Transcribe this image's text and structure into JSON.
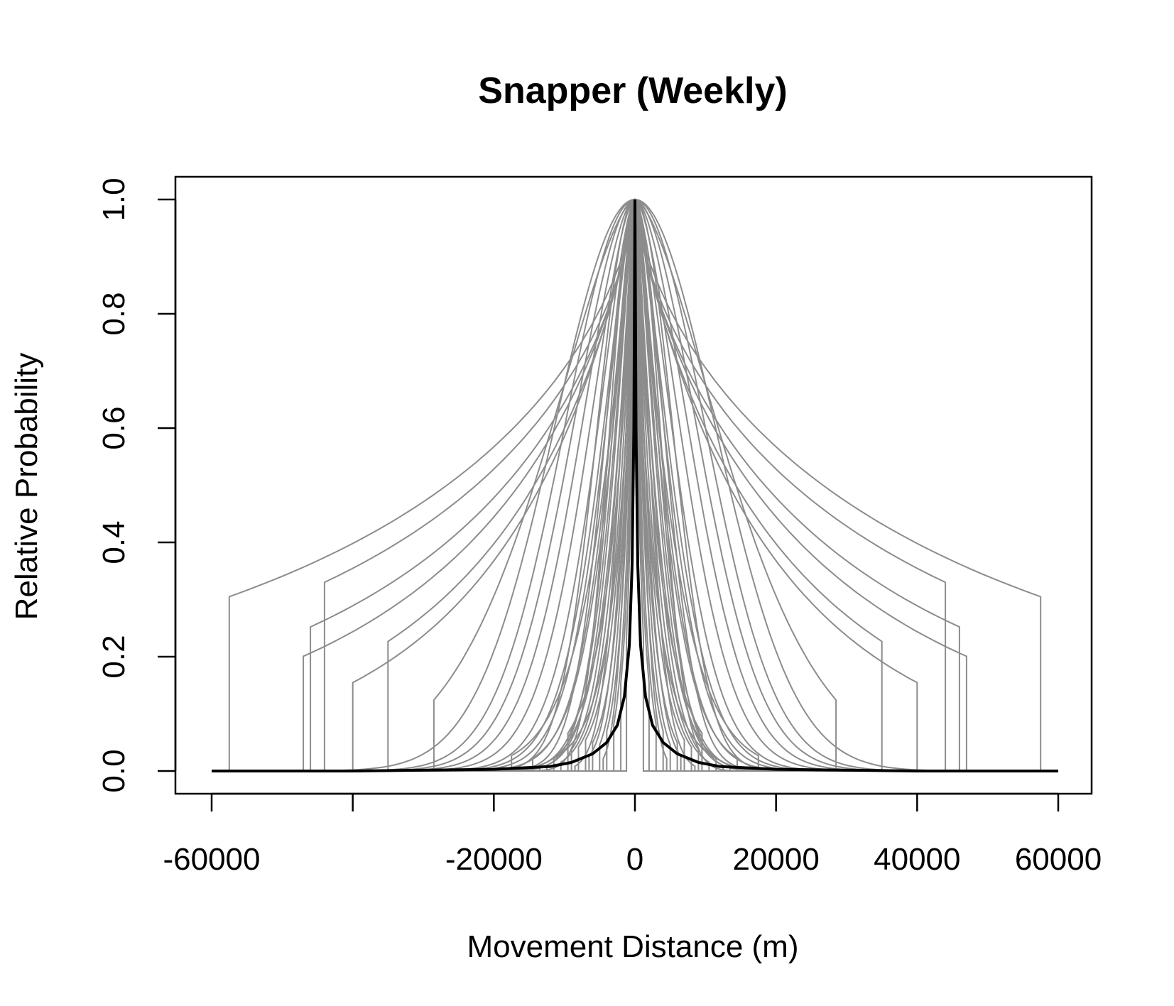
{
  "chart_data": {
    "type": "line",
    "title": "Snapper (Weekly)",
    "xlabel": "Movement Distance (m)",
    "ylabel": "Relative Probability",
    "xlim": [
      -60000,
      60000
    ],
    "ylim": [
      0,
      1
    ],
    "x_ticks": [
      -60000,
      -40000,
      -20000,
      0,
      20000,
      40000,
      60000
    ],
    "x_tick_labels": [
      "-60000",
      "",
      "-20000",
      "0",
      "20000",
      "40000",
      "60000"
    ],
    "y_ticks": [
      0,
      0.2,
      0.4,
      0.6,
      0.8,
      1.0
    ],
    "y_tick_labels": [
      "0.0",
      "0.2",
      "0.4",
      "0.6",
      "0.8",
      "1.0"
    ],
    "grid": false,
    "legend": "none",
    "colors": {
      "samples": "#8c8c8c",
      "mean": "#000000"
    },
    "mean_curve": {
      "x": [
        -60000,
        -40000,
        -20000,
        -12000,
        -9000,
        -6000,
        -4000,
        -2500,
        -1500,
        -800,
        -400,
        -150,
        0,
        150,
        400,
        800,
        1500,
        2500,
        4000,
        6000,
        9000,
        12000,
        20000,
        40000,
        60000
      ],
      "y": [
        0.0,
        0.0,
        0.003,
        0.008,
        0.015,
        0.03,
        0.05,
        0.08,
        0.13,
        0.22,
        0.36,
        0.6,
        1.0,
        0.6,
        0.36,
        0.22,
        0.13,
        0.08,
        0.05,
        0.03,
        0.015,
        0.008,
        0.003,
        0.0,
        0.0
      ]
    },
    "sample_curves": [
      {
        "scale": 45000,
        "shape": 0.7,
        "cutoff": 57500
      },
      {
        "scale": 38000,
        "shape": 0.7,
        "cutoff": 44000
      },
      {
        "scale": 30000,
        "shape": 0.75,
        "cutoff": 46000
      },
      {
        "scale": 26000,
        "shape": 0.8,
        "cutoff": 47000
      },
      {
        "scale": 22000,
        "shape": 0.85,
        "cutoff": 35000
      },
      {
        "scale": 20000,
        "shape": 0.9,
        "cutoff": 40000
      },
      {
        "scale": 7000,
        "shape": 1.5,
        "cutoff": 60000
      },
      {
        "scale": 8000,
        "shape": 1.6,
        "cutoff": 60000
      },
      {
        "scale": 9500,
        "shape": 1.7,
        "cutoff": 60000
      },
      {
        "scale": 11000,
        "shape": 1.8,
        "cutoff": 60000
      },
      {
        "scale": 12500,
        "shape": 1.9,
        "cutoff": 60000
      },
      {
        "scale": 14000,
        "shape": 2.0,
        "cutoff": 60000
      },
      {
        "scale": 16000,
        "shape": 2.0,
        "cutoff": 60000
      },
      {
        "scale": 18000,
        "shape": 1.6,
        "cutoff": 28500
      },
      {
        "scale": 5500,
        "shape": 1.4,
        "cutoff": 22000
      },
      {
        "scale": 6500,
        "shape": 1.5,
        "cutoff": 20000
      },
      {
        "scale": 4500,
        "shape": 1.4,
        "cutoff": 15500
      },
      {
        "scale": 5200,
        "shape": 1.3,
        "cutoff": 14500
      },
      {
        "scale": 3800,
        "shape": 1.2,
        "cutoff": 13500
      },
      {
        "scale": 4200,
        "shape": 1.4,
        "cutoff": 12500
      },
      {
        "scale": 3200,
        "shape": 1.2,
        "cutoff": 10500
      },
      {
        "scale": 3600,
        "shape": 1.3,
        "cutoff": 9000
      },
      {
        "scale": 2800,
        "shape": 1.1,
        "cutoff": 8000
      },
      {
        "scale": 2400,
        "shape": 1.0,
        "cutoff": 7000
      },
      {
        "scale": 2000,
        "shape": 1.0,
        "cutoff": 6000
      },
      {
        "scale": 1800,
        "shape": 1.1,
        "cutoff": 5000
      },
      {
        "scale": 1500,
        "shape": 1.0,
        "cutoff": 4000
      },
      {
        "scale": 1200,
        "shape": 1.0,
        "cutoff": 3000
      },
      {
        "scale": 1000,
        "shape": 0.9,
        "cutoff": 2000
      },
      {
        "scale": 800,
        "shape": 0.9,
        "cutoff": 1200
      },
      {
        "scale": 2600,
        "shape": 0.9,
        "cutoff": 11500
      },
      {
        "scale": 3000,
        "shape": 1.5,
        "cutoff": 8500
      },
      {
        "scale": 4800,
        "shape": 1.6,
        "cutoff": 16500
      },
      {
        "scale": 6000,
        "shape": 1.8,
        "cutoff": 60000
      },
      {
        "scale": 7500,
        "shape": 2.0,
        "cutoff": 60000
      },
      {
        "scale": 5000,
        "shape": 2.0,
        "cutoff": 60000
      },
      {
        "scale": 6000,
        "shape": 1.2,
        "cutoff": 17500
      },
      {
        "scale": 3500,
        "shape": 1.0,
        "cutoff": 9500
      },
      {
        "scale": 2200,
        "shape": 1.2,
        "cutoff": 6500
      },
      {
        "scale": 1600,
        "shape": 1.3,
        "cutoff": 4500
      }
    ]
  }
}
